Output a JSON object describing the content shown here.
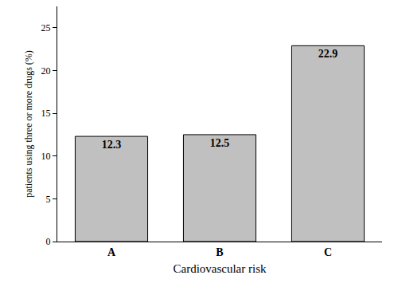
{
  "chart_data": {
    "type": "bar",
    "categories": [
      "A",
      "B",
      "C"
    ],
    "values": [
      12.3,
      12.5,
      22.9
    ],
    "color": "#c0c0c0",
    "xlabel": "Cardiovascular risk",
    "ylabel": "patients using three or more drugs (%)",
    "ylim": [
      0,
      27.5
    ],
    "yticks": [
      0,
      5,
      10,
      15,
      20,
      25
    ],
    "grid": false,
    "data_labels": true
  }
}
